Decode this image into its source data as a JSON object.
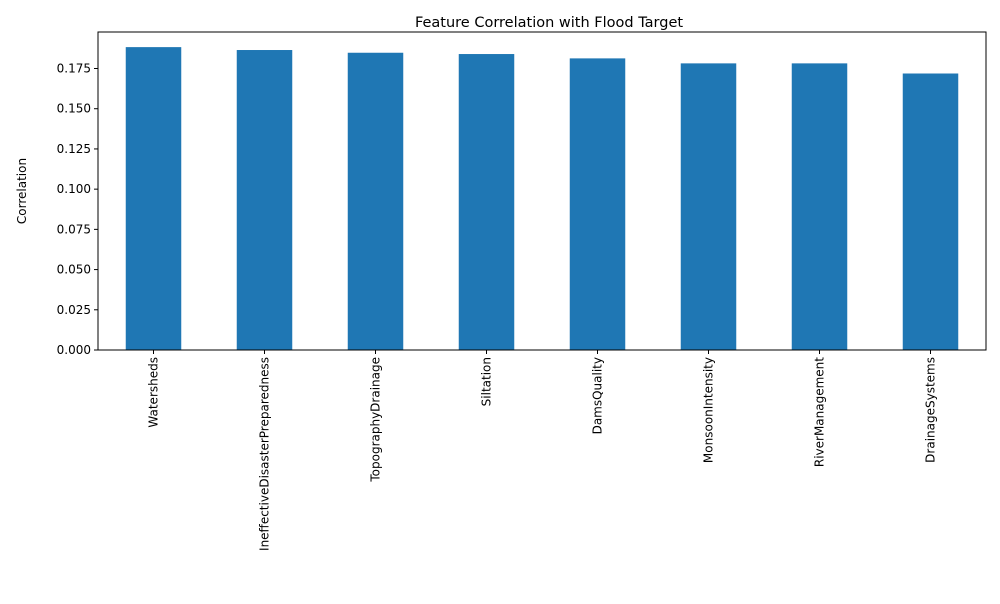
{
  "chart_data": {
    "type": "bar",
    "title": "Feature Correlation with Flood Target",
    "xlabel": "",
    "ylabel": "Correlation",
    "categories": [
      "Watersheds",
      "IneffectiveDisasterPreparedness",
      "TopographyDrainage",
      "Siltation",
      "DamsQuality",
      "MonsoonIntensity",
      "RiverManagement",
      "DrainageSystems"
    ],
    "values": [
      0.1883,
      0.1865,
      0.1848,
      0.184,
      0.1813,
      0.1782,
      0.1782,
      0.1719
    ],
    "ylim": [
      0,
      0.1977
    ],
    "yticks": [
      0.0,
      0.025,
      0.05,
      0.075,
      0.1,
      0.125,
      0.15,
      0.175
    ],
    "ytick_labels": [
      "0.000",
      "0.025",
      "0.050",
      "0.075",
      "0.100",
      "0.125",
      "0.150",
      "0.175"
    ],
    "bar_color": "#1f77b4",
    "grid": false,
    "legend": "none"
  }
}
